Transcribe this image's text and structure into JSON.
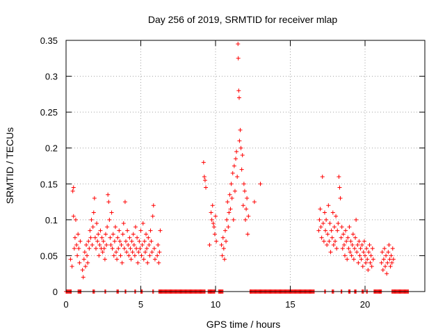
{
  "chart_data": {
    "type": "scatter",
    "title": "Day 256 of 2019, SRMTID for receiver mlap",
    "xlabel": "GPS time / hours",
    "ylabel": "SRMTID / TECUs",
    "xlim": [
      0,
      24
    ],
    "ylim": [
      0,
      0.35
    ],
    "x_ticks": [
      0,
      5,
      10,
      15,
      20
    ],
    "y_ticks": [
      0,
      0.05,
      0.1,
      0.15,
      0.2,
      0.25,
      0.3,
      0.35
    ],
    "x_tick_labels": [
      "0",
      "5",
      "10",
      "15",
      "20"
    ],
    "y_tick_labels": [
      "0",
      "0.05",
      "0.1",
      "0.15",
      "0.2",
      "0.25",
      "0.3",
      "0.35"
    ],
    "grid": true,
    "marker": "+",
    "color": "#ff0000",
    "series": [
      {
        "name": "SRMTID",
        "points": [
          [
            0.3,
            0.045
          ],
          [
            0.4,
            0.035
          ],
          [
            0.45,
            0.14
          ],
          [
            0.5,
            0.145
          ],
          [
            0.5,
            0.105
          ],
          [
            0.55,
            0.06
          ],
          [
            0.6,
            0.075
          ],
          [
            0.65,
            0.1
          ],
          [
            0.7,
            0.065
          ],
          [
            0.75,
            0.05
          ],
          [
            0.8,
            0.08
          ],
          [
            0.85,
            0.06
          ],
          [
            0.9,
            0.04
          ],
          [
            0.95,
            0.07
          ],
          [
            1.1,
            0.03
          ],
          [
            1.15,
            0.02
          ],
          [
            1.2,
            0.045
          ],
          [
            1.25,
            0.055
          ],
          [
            1.3,
            0.035
          ],
          [
            1.35,
            0.065
          ],
          [
            1.4,
            0.05
          ],
          [
            1.45,
            0.04
          ],
          [
            1.5,
            0.07
          ],
          [
            1.55,
            0.06
          ],
          [
            1.6,
            0.085
          ],
          [
            1.65,
            0.075
          ],
          [
            1.7,
            0.1
          ],
          [
            1.75,
            0.065
          ],
          [
            1.8,
            0.09
          ],
          [
            1.85,
            0.11
          ],
          [
            1.9,
            0.13
          ],
          [
            1.95,
            0.075
          ],
          [
            2.0,
            0.06
          ],
          [
            2.05,
            0.095
          ],
          [
            2.1,
            0.07
          ],
          [
            2.15,
            0.08
          ],
          [
            2.2,
            0.05
          ],
          [
            2.25,
            0.065
          ],
          [
            2.3,
            0.085
          ],
          [
            2.35,
            0.06
          ],
          [
            2.4,
            0.075
          ],
          [
            2.45,
            0.055
          ],
          [
            2.5,
            0.07
          ],
          [
            2.55,
            0.06
          ],
          [
            2.6,
            0.045
          ],
          [
            2.65,
            0.08
          ],
          [
            2.7,
            0.065
          ],
          [
            2.75,
            0.09
          ],
          [
            2.8,
            0.135
          ],
          [
            2.85,
            0.125
          ],
          [
            2.9,
            0.1
          ],
          [
            2.95,
            0.075
          ],
          [
            3.0,
            0.065
          ],
          [
            3.05,
            0.11
          ],
          [
            3.1,
            0.06
          ],
          [
            3.15,
            0.08
          ],
          [
            3.2,
            0.05
          ],
          [
            3.25,
            0.07
          ],
          [
            3.3,
            0.09
          ],
          [
            3.35,
            0.055
          ],
          [
            3.4,
            0.045
          ],
          [
            3.45,
            0.075
          ],
          [
            3.5,
            0.06
          ],
          [
            3.55,
            0.085
          ],
          [
            3.6,
            0.07
          ],
          [
            3.65,
            0.05
          ],
          [
            3.7,
            0.065
          ],
          [
            3.75,
            0.04
          ],
          [
            3.8,
            0.08
          ],
          [
            3.85,
            0.095
          ],
          [
            3.9,
            0.06
          ],
          [
            3.95,
            0.125
          ],
          [
            4.0,
            0.07
          ],
          [
            4.05,
            0.055
          ],
          [
            4.1,
            0.085
          ],
          [
            4.15,
            0.065
          ],
          [
            4.2,
            0.05
          ],
          [
            4.25,
            0.075
          ],
          [
            4.3,
            0.06
          ],
          [
            4.35,
            0.045
          ],
          [
            4.4,
            0.07
          ],
          [
            4.45,
            0.055
          ],
          [
            4.5,
            0.08
          ],
          [
            4.55,
            0.065
          ],
          [
            4.6,
            0.05
          ],
          [
            4.65,
            0.09
          ],
          [
            4.7,
            0.06
          ],
          [
            4.75,
            0.075
          ],
          [
            4.8,
            0.04
          ],
          [
            4.85,
            0.055
          ],
          [
            4.9,
            0.07
          ],
          [
            4.95,
            0.06
          ],
          [
            5.0,
            0.085
          ],
          [
            5.05,
            0.05
          ],
          [
            5.1,
            0.065
          ],
          [
            5.15,
            0.095
          ],
          [
            5.2,
            0.045
          ],
          [
            5.25,
            0.07
          ],
          [
            5.3,
            0.055
          ],
          [
            5.35,
            0.08
          ],
          [
            5.4,
            0.06
          ],
          [
            5.45,
            0.04
          ],
          [
            5.5,
            0.075
          ],
          [
            5.55,
            0.065
          ],
          [
            5.6,
            0.05
          ],
          [
            5.65,
            0.085
          ],
          [
            5.7,
            0.07
          ],
          [
            5.75,
            0.055
          ],
          [
            5.8,
            0.105
          ],
          [
            5.85,
            0.12
          ],
          [
            5.9,
            0.06
          ],
          [
            5.95,
            0.045
          ],
          [
            6.1,
            0.05
          ],
          [
            6.15,
            0.065
          ],
          [
            6.2,
            0.04
          ],
          [
            6.25,
            0.055
          ],
          [
            6.3,
            0.085
          ],
          [
            9.2,
            0.18
          ],
          [
            9.25,
            0.16
          ],
          [
            9.3,
            0.155
          ],
          [
            9.35,
            0.145
          ],
          [
            9.6,
            0.065
          ],
          [
            9.7,
            0.11
          ],
          [
            9.75,
            0.1
          ],
          [
            9.8,
            0.12
          ],
          [
            9.85,
            0.095
          ],
          [
            9.9,
            0.09
          ],
          [
            9.95,
            0.08
          ],
          [
            10.0,
            0.105
          ],
          [
            10.05,
            0.07
          ],
          [
            10.4,
            0.065
          ],
          [
            10.45,
            0.05
          ],
          [
            10.5,
            0.075
          ],
          [
            10.55,
            0.06
          ],
          [
            10.6,
            0.045
          ],
          [
            10.65,
            0.085
          ],
          [
            10.7,
            0.07
          ],
          [
            10.75,
            0.1
          ],
          [
            10.8,
            0.125
          ],
          [
            10.85,
            0.09
          ],
          [
            10.9,
            0.11
          ],
          [
            10.95,
            0.135
          ],
          [
            11.0,
            0.115
          ],
          [
            11.05,
            0.15
          ],
          [
            11.1,
            0.13
          ],
          [
            11.15,
            0.165
          ],
          [
            11.2,
            0.1
          ],
          [
            11.25,
            0.175
          ],
          [
            11.3,
            0.14
          ],
          [
            11.35,
            0.185
          ],
          [
            11.4,
            0.195
          ],
          [
            11.45,
            0.16
          ],
          [
            11.5,
            0.345
          ],
          [
            11.52,
            0.325
          ],
          [
            11.55,
            0.28
          ],
          [
            11.58,
            0.27
          ],
          [
            11.6,
            0.21
          ],
          [
            11.65,
            0.225
          ],
          [
            11.7,
            0.2
          ],
          [
            11.75,
            0.17
          ],
          [
            11.8,
            0.19
          ],
          [
            11.85,
            0.12
          ],
          [
            11.9,
            0.15
          ],
          [
            11.95,
            0.14
          ],
          [
            12.0,
            0.1
          ],
          [
            12.05,
            0.115
          ],
          [
            12.1,
            0.13
          ],
          [
            12.15,
            0.08
          ],
          [
            12.2,
            0.105
          ],
          [
            12.6,
            0.125
          ],
          [
            13.0,
            0.15
          ],
          [
            16.9,
            0.085
          ],
          [
            16.95,
            0.1
          ],
          [
            17.0,
            0.115
          ],
          [
            17.05,
            0.09
          ],
          [
            17.1,
            0.075
          ],
          [
            17.15,
            0.16
          ],
          [
            17.2,
            0.095
          ],
          [
            17.25,
            0.07
          ],
          [
            17.3,
            0.11
          ],
          [
            17.35,
            0.085
          ],
          [
            17.4,
            0.1
          ],
          [
            17.45,
            0.065
          ],
          [
            17.5,
            0.08
          ],
          [
            17.55,
            0.12
          ],
          [
            17.6,
            0.07
          ],
          [
            17.65,
            0.095
          ],
          [
            17.7,
            0.055
          ],
          [
            17.75,
            0.085
          ],
          [
            17.8,
            0.075
          ],
          [
            17.85,
            0.11
          ],
          [
            17.9,
            0.065
          ],
          [
            17.95,
            0.09
          ],
          [
            18.0,
            0.07
          ],
          [
            18.05,
            0.105
          ],
          [
            18.1,
            0.06
          ],
          [
            18.15,
            0.085
          ],
          [
            18.2,
            0.095
          ],
          [
            18.25,
            0.16
          ],
          [
            18.3,
            0.145
          ],
          [
            18.35,
            0.13
          ],
          [
            18.4,
            0.075
          ],
          [
            18.45,
            0.09
          ],
          [
            18.5,
            0.06
          ],
          [
            18.55,
            0.08
          ],
          [
            18.6,
            0.065
          ],
          [
            18.65,
            0.05
          ],
          [
            18.7,
            0.085
          ],
          [
            18.75,
            0.07
          ],
          [
            18.8,
            0.045
          ],
          [
            18.85,
            0.075
          ],
          [
            18.9,
            0.06
          ],
          [
            18.95,
            0.09
          ],
          [
            19.0,
            0.055
          ],
          [
            19.05,
            0.07
          ],
          [
            19.1,
            0.05
          ],
          [
            19.15,
            0.065
          ],
          [
            19.2,
            0.08
          ],
          [
            19.25,
            0.045
          ],
          [
            19.3,
            0.06
          ],
          [
            19.35,
            0.075
          ],
          [
            19.4,
            0.1
          ],
          [
            19.45,
            0.055
          ],
          [
            19.5,
            0.065
          ],
          [
            19.55,
            0.04
          ],
          [
            19.6,
            0.07
          ],
          [
            19.65,
            0.05
          ],
          [
            19.7,
            0.06
          ],
          [
            19.75,
            0.045
          ],
          [
            19.8,
            0.065
          ],
          [
            19.85,
            0.035
          ],
          [
            19.9,
            0.055
          ],
          [
            19.95,
            0.07
          ],
          [
            20.0,
            0.05
          ],
          [
            20.05,
            0.04
          ],
          [
            20.1,
            0.06
          ],
          [
            20.15,
            0.045
          ],
          [
            20.2,
            0.03
          ],
          [
            20.25,
            0.055
          ],
          [
            20.3,
            0.065
          ],
          [
            20.35,
            0.04
          ],
          [
            20.4,
            0.05
          ],
          [
            20.45,
            0.035
          ],
          [
            20.5,
            0.06
          ],
          [
            20.55,
            0.045
          ],
          [
            21.1,
            0.04
          ],
          [
            21.15,
            0.055
          ],
          [
            21.2,
            0.03
          ],
          [
            21.25,
            0.045
          ],
          [
            21.3,
            0.06
          ],
          [
            21.35,
            0.035
          ],
          [
            21.4,
            0.05
          ],
          [
            21.45,
            0.025
          ],
          [
            21.5,
            0.04
          ],
          [
            21.55,
            0.055
          ],
          [
            21.6,
            0.065
          ],
          [
            21.65,
            0.045
          ],
          [
            21.7,
            0.035
          ],
          [
            21.75,
            0.05
          ],
          [
            21.8,
            0.04
          ],
          [
            21.85,
            0.06
          ],
          [
            21.9,
            0.045
          ]
        ],
        "zero_ranges": [
          [
            0.0,
            0.35
          ],
          [
            0.8,
            1.0
          ],
          [
            1.8,
            1.9
          ],
          [
            2.6,
            2.65
          ],
          [
            3.4,
            3.5
          ],
          [
            3.95,
            4.0
          ],
          [
            4.6,
            4.65
          ],
          [
            5.0,
            5.1
          ],
          [
            5.8,
            5.85
          ],
          [
            6.2,
            9.3
          ],
          [
            9.5,
            9.95
          ],
          [
            10.2,
            10.5
          ],
          [
            12.3,
            16.6
          ],
          [
            17.3,
            17.35
          ],
          [
            17.8,
            17.9
          ],
          [
            18.4,
            18.45
          ],
          [
            18.9,
            19.0
          ],
          [
            19.3,
            19.4
          ],
          [
            19.8,
            19.9
          ],
          [
            20.1,
            20.15
          ],
          [
            20.6,
            21.1
          ],
          [
            21.8,
            22.9
          ]
        ]
      }
    ]
  }
}
